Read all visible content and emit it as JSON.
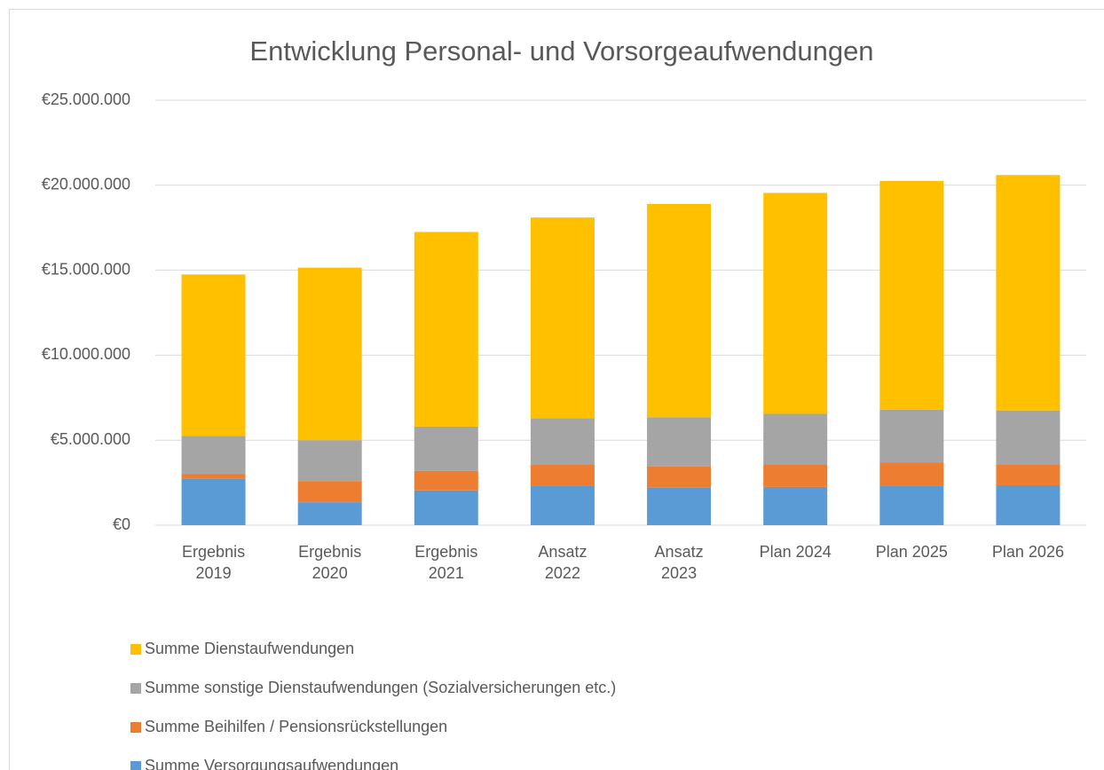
{
  "chart_data": {
    "type": "stacked_bar",
    "title": "Entwicklung Personal- und Vorsorgeaufwendungen",
    "categories": [
      "Ergebnis 2019",
      "Ergebnis 2020",
      "Ergebnis 2021",
      "Ansatz 2022",
      "Ansatz 2023",
      "Plan 2024",
      "Plan 2025",
      "Plan 2026"
    ],
    "series": [
      {
        "name": "Summe Versorgungsaufwendungen",
        "color": "#5b9bd5",
        "values": [
          2750000,
          1350000,
          2050000,
          2300000,
          2200000,
          2250000,
          2300000,
          2350000
        ]
      },
      {
        "name": "Summe Beihilfen / Pensionsrückstellungen",
        "color": "#ed7d31",
        "values": [
          250000,
          1250000,
          1150000,
          1250000,
          1250000,
          1300000,
          1400000,
          1200000
        ]
      },
      {
        "name": "Summe sonstige Dienstaufwendungen (Sozialversicherungen etc.)",
        "color": "#a5a5a5",
        "values": [
          2250000,
          2400000,
          2600000,
          2750000,
          2900000,
          3000000,
          3100000,
          3200000
        ]
      },
      {
        "name": "Summe Dienstaufwendungen",
        "color": "#ffc000",
        "values": [
          9500000,
          10150000,
          11450000,
          11800000,
          12550000,
          13000000,
          13450000,
          13850000
        ]
      }
    ],
    "ylim": [
      0,
      25000000
    ],
    "yticks": [
      {
        "value": 0,
        "label": "€0"
      },
      {
        "value": 5000000,
        "label": "€5.000.000"
      },
      {
        "value": 10000000,
        "label": "€10.000.000"
      },
      {
        "value": 15000000,
        "label": "€15.000.000"
      },
      {
        "value": 20000000,
        "label": "€20.000.000"
      },
      {
        "value": 25000000,
        "label": "€25.000.000"
      }
    ],
    "grid": true
  }
}
